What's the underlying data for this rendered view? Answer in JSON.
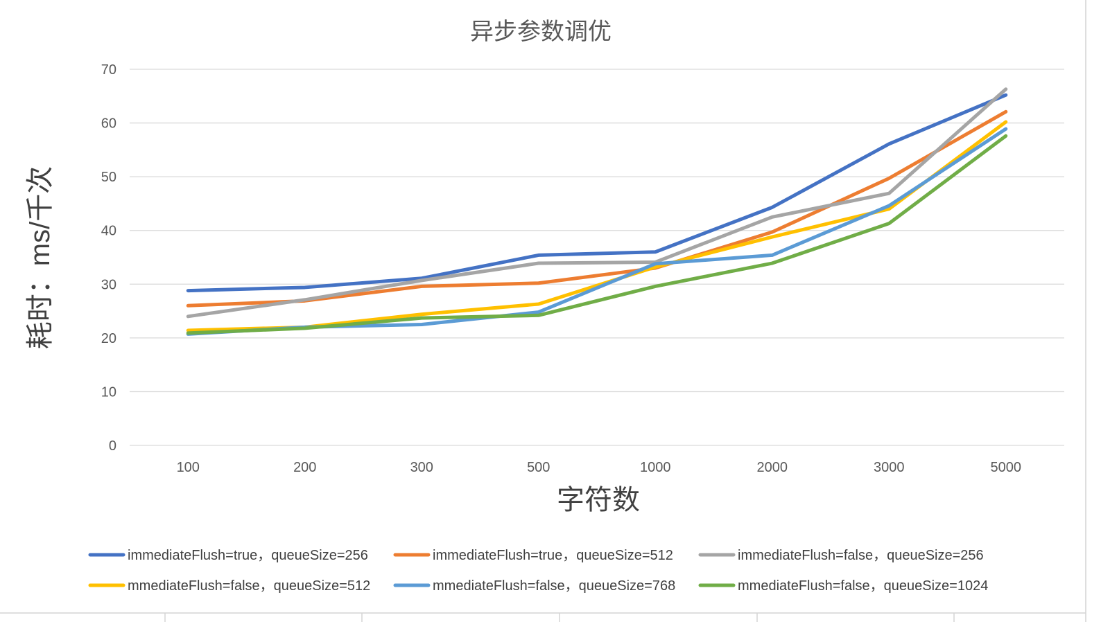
{
  "chart_data": {
    "type": "line",
    "title": "异步参数调优",
    "xlabel": "字符数",
    "ylabel": "耗时：ms/千次",
    "categories": [
      100,
      200,
      300,
      500,
      1000,
      2000,
      3000,
      5000
    ],
    "yticks": [
      0,
      10,
      20,
      30,
      40,
      50,
      60,
      70
    ],
    "ylim": [
      0,
      70
    ],
    "grid": true,
    "legend": "bottom",
    "series": [
      {
        "name": "immediateFlush=true，queueSize=256",
        "color": "#4472C4",
        "values": [
          28.8,
          29.4,
          31.1,
          35.4,
          36.0,
          44.3,
          56.1,
          65.2
        ]
      },
      {
        "name": "immediateFlush=true，queueSize=512",
        "color": "#ED7D31",
        "values": [
          26.0,
          26.9,
          29.6,
          30.2,
          33.0,
          39.7,
          49.7,
          62.1
        ]
      },
      {
        "name": "immediateFlush=false，queueSize=256",
        "color": "#A5A5A5",
        "values": [
          24.0,
          27.1,
          30.7,
          33.9,
          34.1,
          42.5,
          46.9,
          66.3
        ]
      },
      {
        "name": "mmediateFlush=false，queueSize=512",
        "color": "#FFC000",
        "values": [
          21.4,
          22.0,
          24.4,
          26.3,
          33.2,
          38.8,
          44.0,
          60.2
        ]
      },
      {
        "name": "mmediateFlush=false，queueSize=768",
        "color": "#5B9BD5",
        "values": [
          20.7,
          22.0,
          22.5,
          24.8,
          33.8,
          35.4,
          44.6,
          58.9
        ]
      },
      {
        "name": "mmediateFlush=false，queueSize=1024",
        "color": "#70AD47",
        "values": [
          20.9,
          21.8,
          23.7,
          24.2,
          29.6,
          33.9,
          41.3,
          57.6
        ]
      }
    ]
  }
}
